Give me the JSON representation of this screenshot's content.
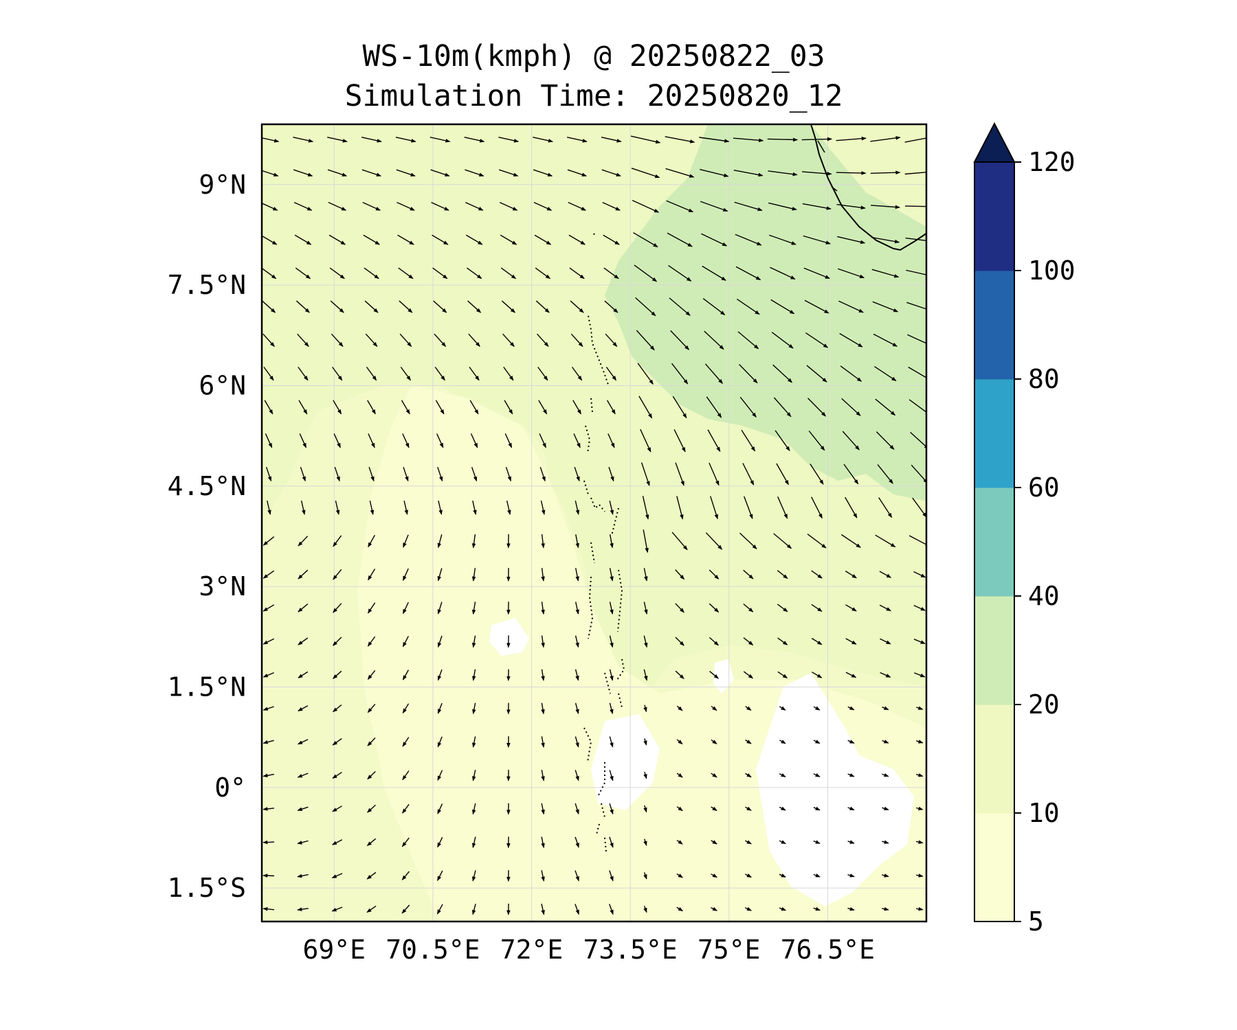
{
  "title": {
    "line1": "WS-10m(kmph) @ 20250822_03",
    "line2": "Simulation Time: 20250820_12"
  },
  "map": {
    "lon_range": [
      67.9,
      78.0
    ],
    "lat_range": [
      -2.0,
      9.9
    ],
    "lon_ticks": [
      {
        "value": 69.0,
        "label": "69°E"
      },
      {
        "value": 70.5,
        "label": "70.5°E"
      },
      {
        "value": 72.0,
        "label": "72°E"
      },
      {
        "value": 73.5,
        "label": "73.5°E"
      },
      {
        "value": 75.0,
        "label": "75°E"
      },
      {
        "value": 76.5,
        "label": "76.5°E"
      }
    ],
    "lat_ticks": [
      {
        "value": 9.0,
        "label": "9°N"
      },
      {
        "value": 7.5,
        "label": "7.5°N"
      },
      {
        "value": 6.0,
        "label": "6°N"
      },
      {
        "value": 4.5,
        "label": "4.5°N"
      },
      {
        "value": 3.0,
        "label": "3°N"
      },
      {
        "value": 1.5,
        "label": "1.5°N"
      },
      {
        "value": 0.0,
        "label": "0°"
      },
      {
        "value": -1.5,
        "label": "1.5°S"
      }
    ],
    "gridlines": true,
    "fill_colors": {
      "below5": "#ffffff",
      "c5_10": "#f9fdd0",
      "c10_20": "#eef8c2",
      "c20_40": "#d0ecb6"
    }
  },
  "colorbar": {
    "levels": [
      {
        "label": "5",
        "value": 5
      },
      {
        "label": "10",
        "value": 10
      },
      {
        "label": "20",
        "value": 20
      },
      {
        "label": "40",
        "value": 40
      },
      {
        "label": "60",
        "value": 60
      },
      {
        "label": "80",
        "value": 80
      },
      {
        "label": "100",
        "value": 100
      },
      {
        "label": "120",
        "value": 120
      }
    ],
    "colors": [
      "#fbfed2",
      "#eef8c0",
      "#cfecb6",
      "#7ccabd",
      "#2fa2c9",
      "#2363ab",
      "#1f2d83"
    ],
    "extend_color": "#0b1f55",
    "extend": "max"
  }
}
